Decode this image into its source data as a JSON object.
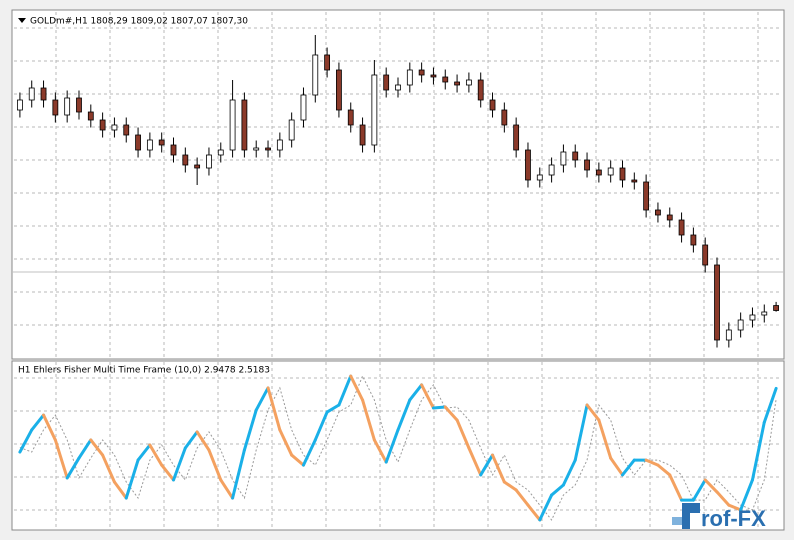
{
  "chart_data": [
    {
      "type": "candlestick",
      "title": "GOLDm#,H1 1808,29 1809,02 1807,07 1807,30",
      "open": [
        1847.4,
        1849.4,
        1851.8,
        1849.4,
        1846.4,
        1849.8,
        1847.0,
        1845.4,
        1843.4,
        1844.4,
        1842.4,
        1839.4,
        1841.4,
        1840.4,
        1838.4,
        1836.4,
        1835.8,
        1838.4,
        1839.4,
        1849.4,
        1839.4,
        1839.8,
        1839.4,
        1841.4,
        1845.4,
        1850.4,
        1858.4,
        1855.4,
        1847.4,
        1844.4,
        1840.4,
        1854.4,
        1851.4,
        1852.4,
        1855.4,
        1854.4,
        1854.0,
        1853.0,
        1852.4,
        1853.4,
        1849.4,
        1847.4,
        1844.4,
        1839.4,
        1833.4,
        1834.4,
        1836.4,
        1839.0,
        1837.4,
        1835.4,
        1834.4,
        1835.8,
        1833.4,
        1833.0,
        1827.4,
        1826.4,
        1825.4,
        1822.4,
        1820.4,
        1816.4,
        1801.4,
        1803.4,
        1805.4,
        1806.4,
        1808.29
      ],
      "high": [
        1850.9,
        1853.3,
        1853.3,
        1850.9,
        1851.3,
        1851.3,
        1848.5,
        1846.9,
        1845.9,
        1845.9,
        1843.9,
        1842.9,
        1842.9,
        1841.9,
        1839.9,
        1837.9,
        1839.9,
        1840.9,
        1853.4,
        1850.9,
        1841.3,
        1841.3,
        1842.9,
        1846.9,
        1851.9,
        1862.4,
        1859.9,
        1856.9,
        1848.9,
        1845.9,
        1857.4,
        1855.9,
        1853.9,
        1856.9,
        1856.9,
        1855.9,
        1855.5,
        1854.5,
        1854.9,
        1854.9,
        1850.9,
        1848.9,
        1845.9,
        1840.9,
        1835.9,
        1837.9,
        1840.5,
        1840.5,
        1838.9,
        1836.9,
        1837.3,
        1837.3,
        1834.9,
        1834.5,
        1828.9,
        1827.9,
        1826.9,
        1823.9,
        1821.9,
        1817.9,
        1804.9,
        1806.9,
        1807.9,
        1808.5,
        1809.02
      ],
      "low": [
        1845.9,
        1847.9,
        1847.9,
        1844.9,
        1844.9,
        1845.5,
        1843.9,
        1841.9,
        1841.9,
        1840.9,
        1837.9,
        1837.9,
        1838.9,
        1836.9,
        1834.9,
        1832.4,
        1834.3,
        1836.9,
        1837.9,
        1837.9,
        1837.9,
        1837.9,
        1837.9,
        1839.9,
        1843.9,
        1848.9,
        1853.9,
        1845.9,
        1842.9,
        1838.9,
        1838.9,
        1849.9,
        1849.9,
        1850.9,
        1852.9,
        1852.5,
        1851.5,
        1850.9,
        1850.9,
        1847.9,
        1845.9,
        1842.9,
        1837.9,
        1831.9,
        1831.9,
        1832.9,
        1834.9,
        1835.9,
        1833.9,
        1832.9,
        1832.9,
        1831.9,
        1831.5,
        1825.9,
        1824.9,
        1823.9,
        1820.9,
        1818.9,
        1814.9,
        1799.9,
        1799.9,
        1801.9,
        1803.9,
        1804.9,
        1807.07
      ],
      "close": [
        1849.4,
        1851.8,
        1849.4,
        1846.4,
        1849.8,
        1847.0,
        1845.4,
        1843.4,
        1844.4,
        1842.4,
        1839.4,
        1841.4,
        1840.4,
        1838.4,
        1836.4,
        1835.8,
        1838.4,
        1839.4,
        1849.4,
        1839.4,
        1839.8,
        1839.4,
        1841.4,
        1845.4,
        1850.4,
        1858.4,
        1855.4,
        1847.4,
        1844.4,
        1840.4,
        1854.4,
        1851.4,
        1852.4,
        1855.4,
        1854.4,
        1854.0,
        1853.0,
        1852.4,
        1853.4,
        1849.4,
        1847.4,
        1844.4,
        1839.4,
        1833.4,
        1834.4,
        1836.4,
        1839.0,
        1837.4,
        1835.4,
        1834.4,
        1835.8,
        1833.4,
        1833.0,
        1827.4,
        1826.4,
        1825.4,
        1822.4,
        1820.4,
        1816.4,
        1801.4,
        1803.4,
        1805.4,
        1806.4,
        1807.0,
        1807.3
      ],
      "ylim": [
        1797.8,
        1867
      ],
      "bull_color": "#ffffff",
      "bear_color": "#8b3a2a",
      "grid": true
    },
    {
      "type": "line",
      "title": "H1 Ehlers Fisher Multi Time Frame (10,0) 2.9478 2.5183",
      "series": [
        {
          "values": [
            0.42,
            1.3,
            1.89,
            0.9,
            -0.61,
            0.18,
            0.9,
            0.3,
            -0.77,
            -1.41,
            0.1,
            0.7,
            -0.1,
            -0.69,
            0.58,
            1.22,
            0.5,
            -0.69,
            -1.41,
            0.5,
            2.09,
            2.97,
            1.3,
            0.3,
            -0.1,
            0.9,
            2.01,
            2.29,
            3.44,
            2.49,
            0.9,
            0.02,
            1.3,
            2.49,
            3.09,
            2.17,
            2.21,
            1.69,
            0.58,
            -0.49,
            0.3,
            -0.77,
            -1.09,
            -1.69,
            -2.28,
            -1.29,
            -0.89,
            0.1,
            2.29,
            1.69,
            0.18,
            -0.49,
            0.1,
            0.1,
            -0.1,
            -0.49,
            -1.49,
            -1.49,
            -0.69,
            -1.17,
            -1.69,
            -1.88,
            -0.69,
            1.6,
            2.9478
          ],
          "up_color": "#1ab0e8",
          "down_color": "#f4a160"
        },
        {
          "values": [
            0.6,
            0.42,
            1.3,
            1.89,
            0.9,
            -0.61,
            0.18,
            0.9,
            0.3,
            -0.77,
            -1.41,
            0.1,
            0.7,
            -0.1,
            -0.69,
            0.58,
            1.22,
            0.5,
            -0.69,
            -1.41,
            0.5,
            2.09,
            2.97,
            1.3,
            0.3,
            -0.1,
            0.9,
            2.01,
            2.29,
            3.44,
            2.49,
            0.9,
            0.02,
            1.3,
            2.49,
            3.09,
            2.17,
            2.21,
            1.69,
            0.58,
            -0.49,
            0.3,
            -0.77,
            -1.09,
            -1.69,
            -2.28,
            -1.29,
            -0.89,
            0.1,
            2.29,
            1.69,
            0.18,
            -0.49,
            0.1,
            0.1,
            -0.1,
            -0.49,
            -1.49,
            -1.49,
            -0.69,
            -1.17,
            -1.69,
            -1.88,
            -0.69,
            2.5183
          ],
          "color": "#9a9a9a",
          "dashed": true
        }
      ],
      "ylim": [
        -2.6,
        4
      ],
      "grid": true
    }
  ],
  "watermark": "rof-FX"
}
